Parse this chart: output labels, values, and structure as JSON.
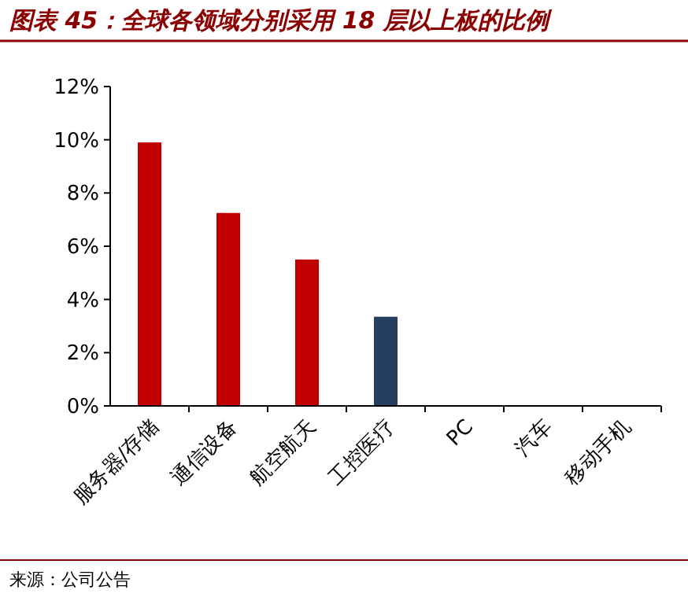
{
  "chart_data": {
    "type": "bar",
    "title": "图表 45：全球各领域分别采用 18 层以上板的比例",
    "categories": [
      "服务器/存储",
      "通信设备",
      "航空航天",
      "工控医疗",
      "PC",
      "汽车",
      "移动手机"
    ],
    "values": [
      9.9,
      7.25,
      5.5,
      3.35,
      0,
      0,
      0
    ],
    "colors": [
      "#c00000",
      "#c00000",
      "#c00000",
      "#243f60",
      "#c00000",
      "#c00000",
      "#c00000"
    ],
    "ylim": [
      0,
      12
    ],
    "yticks": [
      {
        "value": 0,
        "label": "0%"
      },
      {
        "value": 2,
        "label": "2%"
      },
      {
        "value": 4,
        "label": "4%"
      },
      {
        "value": 6,
        "label": "6%"
      },
      {
        "value": 8,
        "label": "8%"
      },
      {
        "value": 10,
        "label": "10%"
      },
      {
        "value": 12,
        "label": "12%"
      }
    ],
    "grid": false,
    "annotations": [
      "来源：公司公告"
    ]
  }
}
